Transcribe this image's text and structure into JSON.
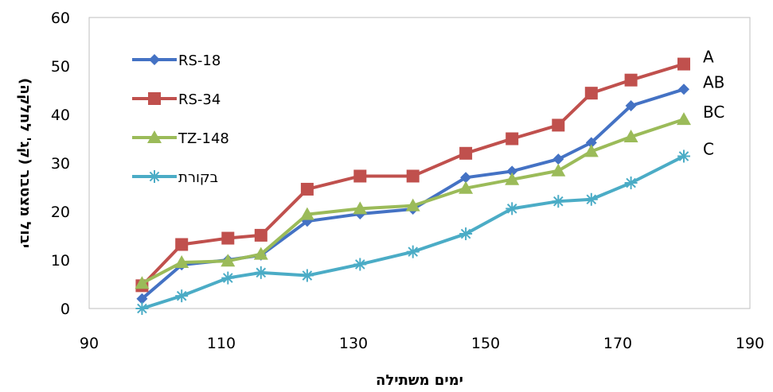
{
  "chart_data": {
    "type": "line",
    "title": "",
    "xlabel": "ימים משתילה",
    "ylabel": "יבול מצטבר (קג' לחלקה)",
    "xlim": [
      90,
      190
    ],
    "ylim": [
      0,
      60
    ],
    "xticks": [
      90,
      110,
      130,
      150,
      170,
      190
    ],
    "yticks": [
      0,
      10,
      20,
      30,
      40,
      50,
      60
    ],
    "grid": false,
    "legend_position": "top-left",
    "x": [
      98,
      104,
      111,
      116,
      123,
      131,
      139,
      147,
      154,
      161,
      166,
      172,
      180
    ],
    "series": [
      {
        "name": "RS-18",
        "color": "#4472C4",
        "marker": "diamond",
        "values": [
          2,
          9,
          10,
          11,
          18,
          19.5,
          20.5,
          27,
          28.3,
          30.8,
          34.2,
          41.8,
          45.2
        ]
      },
      {
        "name": "RS-34",
        "color": "#C0504D",
        "marker": "square",
        "values": [
          4.7,
          13.2,
          14.5,
          15.1,
          24.6,
          27.3,
          27.3,
          32,
          35,
          37.8,
          44.4,
          47.1,
          50.4
        ]
      },
      {
        "name": "TZ-148",
        "color": "#9BBB59",
        "marker": "triangle",
        "values": [
          5.2,
          9.5,
          9.8,
          11.2,
          19.4,
          20.6,
          21.2,
          24.8,
          26.6,
          28.4,
          32.4,
          35.4,
          39
        ]
      },
      {
        "name": "בקורת",
        "color": "#4BACC6",
        "marker": "star",
        "values": [
          0,
          2.6,
          6.3,
          7.4,
          6.8,
          9.1,
          11.7,
          15.4,
          20.6,
          22.1,
          22.5,
          25.9,
          31.4
        ]
      }
    ],
    "annotations": [
      {
        "text": "A",
        "series": "RS-34"
      },
      {
        "text": "AB",
        "series": "RS-18"
      },
      {
        "text": "BC",
        "series": "TZ-148"
      },
      {
        "text": "C",
        "series": "בקורת"
      }
    ]
  }
}
